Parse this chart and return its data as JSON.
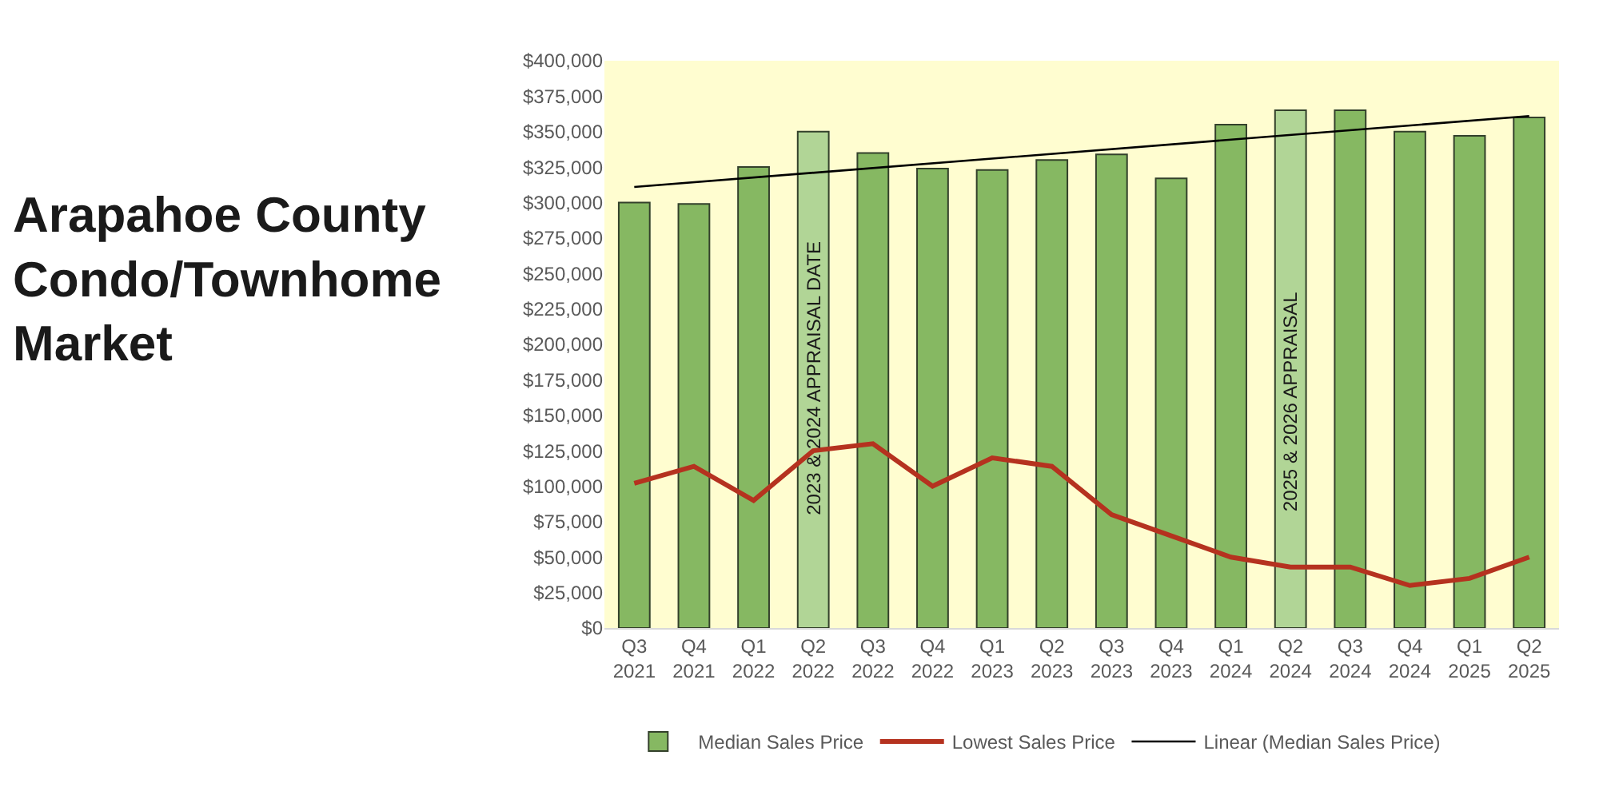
{
  "chart_data": {
    "type": "bar",
    "title": "Arapahoe County\nCondo/Townhome\nMarket",
    "categories": [
      "Q3\n2021",
      "Q4\n2021",
      "Q1\n2022",
      "Q2\n2022",
      "Q3\n2022",
      "Q4\n2022",
      "Q1\n2023",
      "Q2\n2023",
      "Q3\n2023",
      "Q4\n2023",
      "Q1\n2024",
      "Q2\n2024",
      "Q3\n2024",
      "Q4\n2024",
      "Q1\n2025",
      "Q2\n2025"
    ],
    "series": [
      {
        "name": "Median Sales Price",
        "colors": [
          "#86b862",
          "#86b862",
          "#86b862",
          "#b1d596",
          "#86b862",
          "#86b862",
          "#86b862",
          "#86b862",
          "#86b862",
          "#86b862",
          "#86b862",
          "#b1d596",
          "#86b862",
          "#86b862",
          "#86b862",
          "#86b862"
        ],
        "values": [
          300000,
          299000,
          325000,
          350000,
          335000,
          324000,
          323000,
          330000,
          334000,
          317000,
          355000,
          365000,
          365000,
          350000,
          347000,
          360000
        ]
      },
      {
        "name": "Lowest Sales Price",
        "type": "line",
        "color": "#b5321f",
        "values": [
          102000,
          114000,
          90000,
          125000,
          130000,
          100000,
          120000,
          114000,
          80000,
          65000,
          50000,
          43000,
          43000,
          30000,
          35000,
          50000
        ]
      },
      {
        "name": "Linear (Median Sales Price)",
        "type": "line",
        "color": "#000000",
        "x": [
          "Q3\n2021",
          "Q2\n2025"
        ],
        "values": [
          311000,
          361000
        ]
      }
    ],
    "ylim": [
      0,
      400000
    ],
    "yticks": [
      {
        "value": 0,
        "label": "$0"
      },
      {
        "value": 25000,
        "label": "$25,000"
      },
      {
        "value": 50000,
        "label": "$50,000"
      },
      {
        "value": 75000,
        "label": "$75,000"
      },
      {
        "value": 100000,
        "label": "$100,000"
      },
      {
        "value": 125000,
        "label": "$125,000"
      },
      {
        "value": 150000,
        "label": "$150,000"
      },
      {
        "value": 175000,
        "label": "$175,000"
      },
      {
        "value": 200000,
        "label": "$200,000"
      },
      {
        "value": 225000,
        "label": "$225,000"
      },
      {
        "value": 250000,
        "label": "$250,000"
      },
      {
        "value": 275000,
        "label": "$275,000"
      },
      {
        "value": 300000,
        "label": "$300,000"
      },
      {
        "value": 325000,
        "label": "$325,000"
      },
      {
        "value": 350000,
        "label": "$350,000"
      },
      {
        "value": 375000,
        "label": "$375,000"
      },
      {
        "value": 400000,
        "label": "$400,000"
      }
    ],
    "annotations": [
      "2023 & 2024 APPRAISAL DATE",
      "2025 & 2026 APPRAISAL"
    ],
    "legend": "bottom"
  }
}
